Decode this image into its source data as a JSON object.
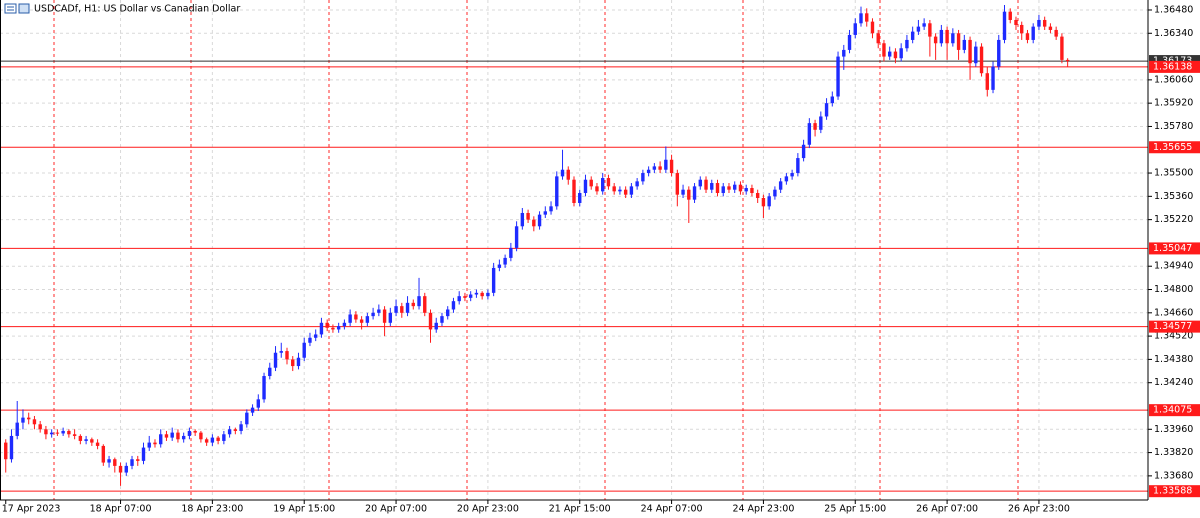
{
  "chart_data": {
    "type": "candlestick",
    "title": "USDCADf, H1:  US Dollar vs Canadian Dollar",
    "up_color": "#1e2bff",
    "down_color": "#ff1a1a",
    "grid": true,
    "xlim": [
      -1,
      199
    ],
    "ylim": [
      1.33535,
      1.3654
    ],
    "yticks": [
      {
        "value": 1.3648,
        "label": "1.36480"
      },
      {
        "value": 1.3634,
        "label": "1.36340"
      },
      {
        "value": 1.3606,
        "label": "1.36060"
      },
      {
        "value": 1.3592,
        "label": "1.35920"
      },
      {
        "value": 1.3578,
        "label": "1.35780"
      },
      {
        "value": 1.355,
        "label": "1.35500"
      },
      {
        "value": 1.3536,
        "label": "1.35360"
      },
      {
        "value": 1.3522,
        "label": "1.35220"
      },
      {
        "value": 1.3494,
        "label": "1.34940"
      },
      {
        "value": 1.348,
        "label": "1.34800"
      },
      {
        "value": 1.3466,
        "label": "1.34660"
      },
      {
        "value": 1.3452,
        "label": "1.34520"
      },
      {
        "value": 1.3438,
        "label": "1.34380"
      },
      {
        "value": 1.3424,
        "label": "1.34240"
      },
      {
        "value": 1.3396,
        "label": "1.33960"
      },
      {
        "value": 1.3382,
        "label": "1.33820"
      },
      {
        "value": 1.3368,
        "label": "1.33680"
      }
    ],
    "xticks": [
      {
        "value": 0,
        "label": "17 Apr 2023"
      },
      {
        "value": 20,
        "label": "18 Apr 07:00"
      },
      {
        "value": 36,
        "label": "18 Apr 23:00"
      },
      {
        "value": 52,
        "label": "19 Apr 15:00"
      },
      {
        "value": 68,
        "label": "20 Apr 07:00"
      },
      {
        "value": 84,
        "label": "20 Apr 23:00"
      },
      {
        "value": 100,
        "label": "21 Apr 15:00"
      },
      {
        "value": 116,
        "label": "24 Apr 07:00"
      },
      {
        "value": 132,
        "label": "24 Apr 23:00"
      },
      {
        "value": 148,
        "label": "25 Apr 15:00"
      },
      {
        "value": 164,
        "label": "26 Apr 07:00"
      },
      {
        "value": 180,
        "label": "26 Apr 23:00"
      }
    ],
    "levels": [
      {
        "value": 1.36173,
        "color": "#333333"
      },
      {
        "value": 1.36138,
        "color": "#ff1a1a"
      },
      {
        "value": 1.35655,
        "color": "#ff1a1a"
      },
      {
        "value": 1.35047,
        "color": "#ff1a1a"
      },
      {
        "value": 1.34577,
        "color": "#ff1a1a"
      },
      {
        "value": 1.34075,
        "color": "#ff1a1a"
      },
      {
        "value": 1.33588,
        "color": "#ff1a1a"
      }
    ],
    "candles": [
      [
        1.3388,
        1.339,
        1.337,
        1.3378
      ],
      [
        1.3378,
        1.3396,
        1.3376,
        1.3392
      ],
      [
        1.3392,
        1.3413,
        1.339,
        1.34
      ],
      [
        1.34,
        1.3408,
        1.3396,
        1.3403
      ],
      [
        1.3403,
        1.3406,
        1.3399,
        1.3402
      ],
      [
        1.3402,
        1.3404,
        1.3396,
        1.3399
      ],
      [
        1.3399,
        1.3401,
        1.3394,
        1.3396
      ],
      [
        1.3396,
        1.3398,
        1.339,
        1.3393
      ],
      [
        1.3393,
        1.3396,
        1.3391,
        1.3394
      ],
      [
        1.3394,
        1.3396,
        1.3392,
        1.33935
      ],
      [
        1.33935,
        1.3397,
        1.3392,
        1.3395
      ],
      [
        1.3395,
        1.3396,
        1.3391,
        1.3393
      ],
      [
        1.3393,
        1.3396,
        1.339,
        1.3392
      ],
      [
        1.3392,
        1.3393,
        1.3387,
        1.3389
      ],
      [
        1.3389,
        1.3392,
        1.3387,
        1.339
      ],
      [
        1.339,
        1.3391,
        1.3386,
        1.3388
      ],
      [
        1.3388,
        1.339,
        1.3384,
        1.3386
      ],
      [
        1.3386,
        1.3387,
        1.3374,
        1.3376
      ],
      [
        1.3376,
        1.338,
        1.3373,
        1.3378
      ],
      [
        1.3378,
        1.3379,
        1.337,
        1.3374
      ],
      [
        1.3374,
        1.3376,
        1.3362,
        1.337
      ],
      [
        1.337,
        1.3376,
        1.3368,
        1.3374
      ],
      [
        1.3374,
        1.338,
        1.3372,
        1.3378
      ],
      [
        1.3378,
        1.338,
        1.3374,
        1.3377
      ],
      [
        1.3377,
        1.3388,
        1.3375,
        1.3385
      ],
      [
        1.3385,
        1.3392,
        1.3383,
        1.3388
      ],
      [
        1.3388,
        1.339,
        1.3385,
        1.3387
      ],
      [
        1.3387,
        1.3396,
        1.3385,
        1.3393
      ],
      [
        1.3393,
        1.3395,
        1.3389,
        1.3391
      ],
      [
        1.3391,
        1.3397,
        1.3389,
        1.3394
      ],
      [
        1.3394,
        1.3396,
        1.3388,
        1.339
      ],
      [
        1.339,
        1.3394,
        1.3388,
        1.3392
      ],
      [
        1.3392,
        1.3397,
        1.339,
        1.3395
      ],
      [
        1.3395,
        1.3396,
        1.3392,
        1.3394
      ],
      [
        1.3394,
        1.3395,
        1.3388,
        1.339
      ],
      [
        1.339,
        1.3391,
        1.3386,
        1.3388
      ],
      [
        1.3388,
        1.3393,
        1.3386,
        1.3391
      ],
      [
        1.3391,
        1.3392,
        1.3387,
        1.3389
      ],
      [
        1.3389,
        1.3395,
        1.3387,
        1.3393
      ],
      [
        1.3393,
        1.3398,
        1.3391,
        1.3396
      ],
      [
        1.3396,
        1.3397,
        1.3393,
        1.3395
      ],
      [
        1.3395,
        1.3401,
        1.3393,
        1.3399
      ],
      [
        1.3399,
        1.3408,
        1.3397,
        1.3406
      ],
      [
        1.3406,
        1.3411,
        1.3404,
        1.3409
      ],
      [
        1.3409,
        1.3417,
        1.3407,
        1.3414
      ],
      [
        1.3414,
        1.343,
        1.3412,
        1.3428
      ],
      [
        1.3428,
        1.3436,
        1.3426,
        1.3433
      ],
      [
        1.3433,
        1.3446,
        1.3431,
        1.3442
      ],
      [
        1.3442,
        1.3448,
        1.3439,
        1.3443
      ],
      [
        1.3443,
        1.3445,
        1.3435,
        1.3438
      ],
      [
        1.3438,
        1.344,
        1.3431,
        1.3434
      ],
      [
        1.3434,
        1.3442,
        1.3432,
        1.3439
      ],
      [
        1.3439,
        1.3451,
        1.3437,
        1.3448
      ],
      [
        1.3448,
        1.3454,
        1.3446,
        1.3451
      ],
      [
        1.3451,
        1.3456,
        1.3449,
        1.3453
      ],
      [
        1.3453,
        1.3463,
        1.3451,
        1.346
      ],
      [
        1.346,
        1.3462,
        1.3455,
        1.3457
      ],
      [
        1.3457,
        1.3459,
        1.3454,
        1.3456
      ],
      [
        1.3456,
        1.346,
        1.3454,
        1.3458
      ],
      [
        1.3458,
        1.3462,
        1.3456,
        1.346
      ],
      [
        1.346,
        1.3468,
        1.3458,
        1.3465
      ],
      [
        1.3465,
        1.3467,
        1.346,
        1.3462
      ],
      [
        1.3462,
        1.3464,
        1.3456,
        1.346
      ],
      [
        1.346,
        1.3466,
        1.3458,
        1.3464
      ],
      [
        1.3464,
        1.3469,
        1.3462,
        1.3466
      ],
      [
        1.3466,
        1.3471,
        1.3464,
        1.3468
      ],
      [
        1.3468,
        1.347,
        1.3452,
        1.346
      ],
      [
        1.346,
        1.3469,
        1.3458,
        1.3466
      ],
      [
        1.3466,
        1.3474,
        1.3464,
        1.347
      ],
      [
        1.347,
        1.3472,
        1.3463,
        1.3466
      ],
      [
        1.3466,
        1.3476,
        1.3464,
        1.3472
      ],
      [
        1.3472,
        1.3474,
        1.3468,
        1.347
      ],
      [
        1.347,
        1.3487,
        1.3468,
        1.3476
      ],
      [
        1.3476,
        1.3478,
        1.3464,
        1.3466
      ],
      [
        1.3466,
        1.3468,
        1.3448,
        1.3456
      ],
      [
        1.3456,
        1.3463,
        1.3454,
        1.346
      ],
      [
        1.346,
        1.3466,
        1.3458,
        1.3464
      ],
      [
        1.3464,
        1.347,
        1.3462,
        1.3468
      ],
      [
        1.3468,
        1.3475,
        1.3466,
        1.3473
      ],
      [
        1.3473,
        1.3479,
        1.3471,
        1.3476
      ],
      [
        1.3476,
        1.3478,
        1.3473,
        1.3475
      ],
      [
        1.3475,
        1.3479,
        1.3473,
        1.3477
      ],
      [
        1.3477,
        1.348,
        1.3475,
        1.3478
      ],
      [
        1.3478,
        1.3479,
        1.3474,
        1.3476
      ],
      [
        1.3476,
        1.348,
        1.3474,
        1.3478
      ],
      [
        1.3478,
        1.3496,
        1.3476,
        1.3493
      ],
      [
        1.3493,
        1.3498,
        1.3491,
        1.3495
      ],
      [
        1.3495,
        1.3501,
        1.3493,
        1.3499
      ],
      [
        1.3499,
        1.3508,
        1.3497,
        1.3505
      ],
      [
        1.3505,
        1.3521,
        1.3503,
        1.3518
      ],
      [
        1.3518,
        1.3529,
        1.3516,
        1.3526
      ],
      [
        1.3526,
        1.3528,
        1.352,
        1.3522
      ],
      [
        1.3522,
        1.3524,
        1.3515,
        1.3518
      ],
      [
        1.3518,
        1.3527,
        1.3516,
        1.3525
      ],
      [
        1.3525,
        1.353,
        1.3523,
        1.3527
      ],
      [
        1.3527,
        1.3533,
        1.3525,
        1.353
      ],
      [
        1.353,
        1.3551,
        1.3528,
        1.3548
      ],
      [
        1.3548,
        1.3564,
        1.3546,
        1.3552
      ],
      [
        1.3552,
        1.3554,
        1.3543,
        1.3546
      ],
      [
        1.3546,
        1.3548,
        1.353,
        1.3532
      ],
      [
        1.3532,
        1.354,
        1.353,
        1.3538
      ],
      [
        1.3538,
        1.3549,
        1.3536,
        1.3546
      ],
      [
        1.3546,
        1.3548,
        1.354,
        1.3542
      ],
      [
        1.3542,
        1.3544,
        1.3537,
        1.3539
      ],
      [
        1.3539,
        1.355,
        1.3537,
        1.3547
      ],
      [
        1.3547,
        1.3549,
        1.354,
        1.3542
      ],
      [
        1.3542,
        1.3544,
        1.3537,
        1.3539
      ],
      [
        1.3539,
        1.3542,
        1.3537,
        1.354
      ],
      [
        1.354,
        1.3542,
        1.3535,
        1.3537
      ],
      [
        1.3537,
        1.3544,
        1.3535,
        1.3542
      ],
      [
        1.3542,
        1.3547,
        1.354,
        1.3545
      ],
      [
        1.3545,
        1.3552,
        1.3543,
        1.355
      ],
      [
        1.355,
        1.3554,
        1.3548,
        1.3552
      ],
      [
        1.3552,
        1.3556,
        1.355,
        1.3554
      ],
      [
        1.3554,
        1.3557,
        1.355,
        1.3552
      ],
      [
        1.3552,
        1.3566,
        1.355,
        1.3558
      ],
      [
        1.3558,
        1.3561,
        1.3548,
        1.355
      ],
      [
        1.355,
        1.3552,
        1.353,
        1.3537
      ],
      [
        1.3537,
        1.3543,
        1.3535,
        1.354
      ],
      [
        1.354,
        1.3542,
        1.352,
        1.3534
      ],
      [
        1.3534,
        1.3544,
        1.3532,
        1.3542
      ],
      [
        1.3542,
        1.3548,
        1.354,
        1.3546
      ],
      [
        1.3546,
        1.3548,
        1.3538,
        1.354
      ],
      [
        1.354,
        1.3546,
        1.3538,
        1.3544
      ],
      [
        1.3544,
        1.3546,
        1.3536,
        1.3538
      ],
      [
        1.3538,
        1.3544,
        1.3536,
        1.3542
      ],
      [
        1.3542,
        1.3544,
        1.3538,
        1.354
      ],
      [
        1.354,
        1.3545,
        1.3538,
        1.3543
      ],
      [
        1.3543,
        1.3545,
        1.3537,
        1.3539
      ],
      [
        1.3539,
        1.3543,
        1.3537,
        1.3541
      ],
      [
        1.3541,
        1.3543,
        1.3536,
        1.3538
      ],
      [
        1.3538,
        1.354,
        1.3532,
        1.3535
      ],
      [
        1.3535,
        1.3537,
        1.3523,
        1.353
      ],
      [
        1.353,
        1.3538,
        1.3528,
        1.3536
      ],
      [
        1.3536,
        1.3542,
        1.3534,
        1.354
      ],
      [
        1.354,
        1.3547,
        1.3538,
        1.3545
      ],
      [
        1.3545,
        1.355,
        1.3543,
        1.3548
      ],
      [
        1.3548,
        1.3552,
        1.3546,
        1.355
      ],
      [
        1.355,
        1.3562,
        1.3548,
        1.3559
      ],
      [
        1.3559,
        1.357,
        1.3557,
        1.3567
      ],
      [
        1.3567,
        1.3583,
        1.3565,
        1.358
      ],
      [
        1.358,
        1.3582,
        1.3572,
        1.3576
      ],
      [
        1.3576,
        1.3587,
        1.3574,
        1.3584
      ],
      [
        1.3584,
        1.3595,
        1.3582,
        1.3592
      ],
      [
        1.3592,
        1.3599,
        1.359,
        1.3596
      ],
      [
        1.3596,
        1.3623,
        1.3594,
        1.362
      ],
      [
        1.362,
        1.3627,
        1.3612,
        1.3624
      ],
      [
        1.3624,
        1.3636,
        1.3622,
        1.3633
      ],
      [
        1.3633,
        1.3643,
        1.3631,
        1.364
      ],
      [
        1.364,
        1.365,
        1.3638,
        1.3646
      ],
      [
        1.3646,
        1.3649,
        1.3638,
        1.3641
      ],
      [
        1.3641,
        1.3643,
        1.3631,
        1.3634
      ],
      [
        1.3634,
        1.3636,
        1.3625,
        1.3628
      ],
      [
        1.3628,
        1.363,
        1.3617,
        1.362
      ],
      [
        1.362,
        1.3626,
        1.3618,
        1.3623
      ],
      [
        1.3623,
        1.3625,
        1.3616,
        1.3619
      ],
      [
        1.3619,
        1.3628,
        1.3617,
        1.3625
      ],
      [
        1.3625,
        1.3633,
        1.3623,
        1.363
      ],
      [
        1.363,
        1.3638,
        1.3628,
        1.3635
      ],
      [
        1.3635,
        1.3642,
        1.3633,
        1.3638
      ],
      [
        1.3638,
        1.3643,
        1.3636,
        1.364
      ],
      [
        1.364,
        1.3642,
        1.362,
        1.3632
      ],
      [
        1.3632,
        1.3634,
        1.3618,
        1.3628
      ],
      [
        1.3628,
        1.3639,
        1.3626,
        1.3636
      ],
      [
        1.3636,
        1.3638,
        1.3618,
        1.3628
      ],
      [
        1.3628,
        1.3637,
        1.3626,
        1.3634
      ],
      [
        1.3634,
        1.3636,
        1.3618,
        1.3624
      ],
      [
        1.3624,
        1.3633,
        1.3622,
        1.363
      ],
      [
        1.363,
        1.3632,
        1.3606,
        1.3616
      ],
      [
        1.3616,
        1.3629,
        1.3614,
        1.3626
      ],
      [
        1.3626,
        1.3628,
        1.3608,
        1.361
      ],
      [
        1.361,
        1.3614,
        1.3596,
        1.36
      ],
      [
        1.36,
        1.3617,
        1.3598,
        1.3614
      ],
      [
        1.3614,
        1.3633,
        1.3612,
        1.363
      ],
      [
        1.363,
        1.3651,
        1.3628,
        1.3647
      ],
      [
        1.3647,
        1.3649,
        1.364,
        1.3642
      ],
      [
        1.3642,
        1.3644,
        1.3636,
        1.3639
      ],
      [
        1.3639,
        1.3641,
        1.363,
        1.3634
      ],
      [
        1.3634,
        1.3636,
        1.3628,
        1.363
      ],
      [
        1.363,
        1.364,
        1.3628,
        1.3638
      ],
      [
        1.3638,
        1.3645,
        1.3636,
        1.3642
      ],
      [
        1.3642,
        1.3644,
        1.3636,
        1.3638
      ],
      [
        1.3638,
        1.364,
        1.3634,
        1.3636
      ],
      [
        1.3636,
        1.3638,
        1.363,
        1.3632
      ],
      [
        1.3632,
        1.3634,
        1.3616,
        1.3618
      ],
      [
        1.3618,
        1.3619,
        1.3614,
        1.36173
      ]
    ]
  }
}
